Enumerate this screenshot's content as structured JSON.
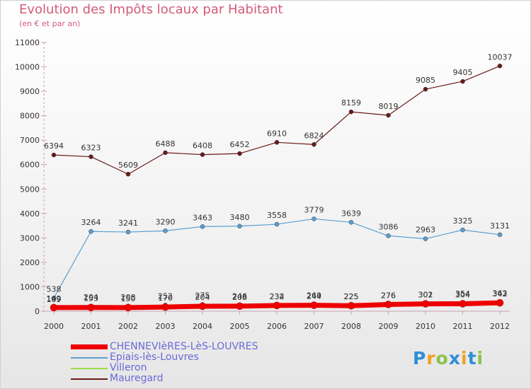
{
  "title": "Evolution des Impôts locaux par Habitant",
  "subtitle": "(en € et par an)",
  "logo": {
    "letters": [
      "P",
      "r",
      "o",
      "x",
      "i",
      "t",
      "i"
    ],
    "colors": [
      "#2e8fd8",
      "#f0a020",
      "#8bc34a",
      "#2e8fd8",
      "#f0a020",
      "#2e8fd8",
      "#8bc34a"
    ]
  },
  "chart_data": {
    "type": "line",
    "x": [
      "2000",
      "2001",
      "2002",
      "2003",
      "2004",
      "2005",
      "2006",
      "2007",
      "2008",
      "2009",
      "2010",
      "2011",
      "2012"
    ],
    "ylim": [
      0,
      11000
    ],
    "yticks": [
      "0",
      "1000",
      "2000",
      "3000",
      "4000",
      "5000",
      "6000",
      "7000",
      "8000",
      "9000",
      "10000",
      "11000"
    ],
    "grid": false,
    "series": [
      {
        "name": "CHENNEVIèRES-LèS-LOUVRES",
        "color": "#ee0000",
        "width": 7,
        "values": [
          149,
          153,
          150,
          170,
          204,
          208,
          234,
          244,
          225,
          276,
          302,
          304,
          342
        ],
        "labels": [
          "149",
          "153",
          "150",
          "170",
          "204",
          "208",
          "234",
          "244",
          "225",
          "276",
          "302",
          "304",
          "342"
        ]
      },
      {
        "name": "Epiais-lès-Louvres",
        "color": "#5a9fd0",
        "width": 1.2,
        "values": [
          538,
          3264,
          3241,
          3290,
          3463,
          3480,
          3558,
          3779,
          3639,
          3086,
          2963,
          3325,
          3131
        ],
        "labels": [
          "538",
          "3264",
          "3241",
          "3290",
          "3463",
          "3480",
          "3558",
          "3779",
          "3639",
          "3086",
          "2963",
          "3325",
          "3131"
        ]
      },
      {
        "name": "Villeron",
        "color": "#99dd44",
        "width": 1.2,
        "values": [
          109,
          204,
          208,
          252,
          275,
          246,
          232,
          269,
          225,
          276,
          301,
          354,
          363
        ],
        "labels": [
          "109",
          "204",
          "208",
          "252",
          "275",
          "246",
          "232",
          "269",
          "225",
          "276",
          "301",
          "354",
          "363"
        ]
      },
      {
        "name": "Mauregard",
        "color": "#6b1a1a",
        "width": 1.2,
        "values": [
          6394,
          6323,
          5609,
          6488,
          6408,
          6452,
          6910,
          6824,
          8159,
          8019,
          9085,
          9405,
          10037
        ],
        "labels": [
          "6394",
          "6323",
          "5609",
          "6488",
          "6408",
          "6452",
          "6910",
          "6824",
          "8159",
          "8019",
          "9085",
          "9405",
          "10037"
        ]
      }
    ]
  }
}
